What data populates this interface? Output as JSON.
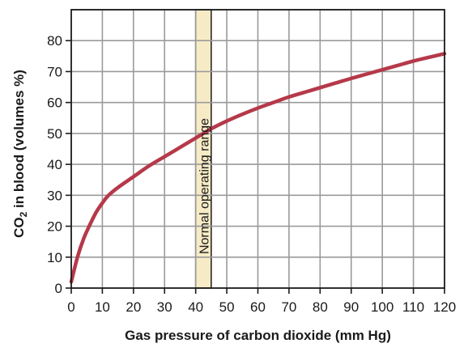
{
  "chart_data": {
    "type": "line",
    "title": "",
    "xlabel": "Gas pressure of carbon dioxide (mm Hg)",
    "ylabel_parts": {
      "pre": "CO",
      "sub": "2",
      "post": " in blood (volumes %)"
    },
    "xlim": [
      0,
      120
    ],
    "ylim": [
      0,
      90
    ],
    "x_ticks": [
      "0",
      "10",
      "20",
      "30",
      "40",
      "50",
      "60",
      "70",
      "80",
      "90",
      "100",
      "110",
      "120"
    ],
    "y_ticks": [
      "0",
      "10",
      "20",
      "30",
      "40",
      "50",
      "60",
      "70",
      "80"
    ],
    "grid": true,
    "band": {
      "x_range": [
        40,
        45
      ],
      "label": "Normal operating range",
      "color": "#f7ebc6"
    },
    "series": [
      {
        "color": "#b5394a",
        "x": [
          0,
          2,
          4,
          6,
          8,
          10,
          12,
          15,
          20,
          25,
          30,
          35,
          40,
          45,
          50,
          55,
          60,
          65,
          70,
          75,
          80,
          85,
          90,
          95,
          100,
          105,
          110,
          115,
          120
        ],
        "y": [
          2,
          10,
          16,
          20.5,
          24.5,
          27.5,
          30,
          32.5,
          36,
          39.5,
          42.5,
          45.5,
          48.5,
          51.5,
          54,
          56.2,
          58.2,
          60,
          61.8,
          63.3,
          64.8,
          66.3,
          67.8,
          69.2,
          70.6,
          72,
          73.4,
          74.6,
          75.8
        ]
      }
    ]
  }
}
